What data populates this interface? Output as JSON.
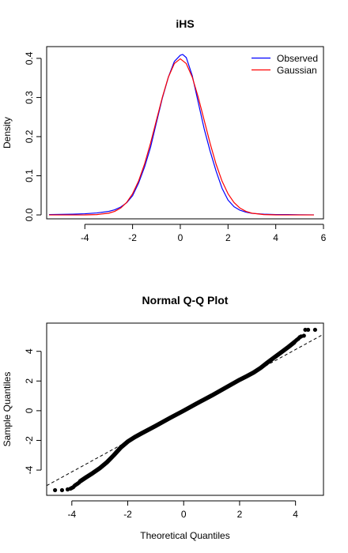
{
  "chart_data": [
    {
      "type": "line",
      "title": "iHS",
      "xlabel": "",
      "ylabel": "Density",
      "xlim": [
        -5.6,
        6.0
      ],
      "ylim": [
        -0.01,
        0.43
      ],
      "xticks": [
        -4,
        -2,
        0,
        2,
        4,
        6
      ],
      "yticks": [
        0.0,
        0.1,
        0.2,
        0.3,
        0.4
      ],
      "xtick_labels": [
        "-4",
        "-2",
        "0",
        "2",
        "4",
        "6"
      ],
      "ytick_labels": [
        "0.0",
        "0.1",
        "0.2",
        "0.3",
        "0.4"
      ],
      "legend_position": "top-right",
      "series": [
        {
          "name": "Observed",
          "color": "#0000ff",
          "x": [
            -5.5,
            -4.5,
            -4.0,
            -3.5,
            -3.0,
            -2.75,
            -2.5,
            -2.25,
            -2.0,
            -1.75,
            -1.5,
            -1.25,
            -1.0,
            -0.75,
            -0.5,
            -0.25,
            0.0,
            0.1,
            0.25,
            0.5,
            0.75,
            1.0,
            1.25,
            1.5,
            1.75,
            2.0,
            2.25,
            2.5,
            2.75,
            3.0,
            3.5,
            4.0,
            4.5,
            5.0,
            5.6
          ],
          "y": [
            0.001,
            0.002,
            0.003,
            0.005,
            0.009,
            0.013,
            0.02,
            0.031,
            0.049,
            0.081,
            0.122,
            0.172,
            0.236,
            0.299,
            0.352,
            0.392,
            0.408,
            0.41,
            0.402,
            0.356,
            0.288,
            0.22,
            0.163,
            0.112,
            0.068,
            0.038,
            0.021,
            0.012,
            0.007,
            0.004,
            0.002,
            0.001,
            0.001,
            0.0005,
            0.0002
          ]
        },
        {
          "name": "Gaussian",
          "color": "#ff0000",
          "x": [
            -5.5,
            -4.5,
            -4.0,
            -3.5,
            -3.0,
            -2.75,
            -2.5,
            -2.25,
            -2.0,
            -1.75,
            -1.5,
            -1.25,
            -1.0,
            -0.75,
            -0.5,
            -0.25,
            0.0,
            0.25,
            0.5,
            0.75,
            1.0,
            1.25,
            1.5,
            1.75,
            2.0,
            2.25,
            2.5,
            2.75,
            3.0,
            3.5,
            4.0,
            4.5,
            5.0,
            5.6
          ],
          "y": [
            0.0,
            2e-05,
            0.0001,
            0.0009,
            0.0044,
            0.0091,
            0.0175,
            0.0317,
            0.054,
            0.0863,
            0.1295,
            0.1826,
            0.242,
            0.3011,
            0.3521,
            0.3867,
            0.3989,
            0.3867,
            0.3521,
            0.3011,
            0.242,
            0.1826,
            0.1295,
            0.0863,
            0.054,
            0.0317,
            0.0175,
            0.0091,
            0.0044,
            0.0009,
            0.0001,
            2e-05,
            0.0,
            0.0
          ]
        }
      ]
    },
    {
      "type": "scatter",
      "title": "Normal Q-Q Plot",
      "xlabel": "Theoretical Quantiles",
      "ylabel": "Sample Quantiles",
      "xlim": [
        -4.9,
        5.0
      ],
      "ylim": [
        -5.7,
        5.9
      ],
      "xticks": [
        -4,
        -2,
        0,
        2,
        4
      ],
      "yticks": [
        -4,
        -2,
        0,
        2,
        4
      ],
      "xtick_labels": [
        "-4",
        "-2",
        "0",
        "2",
        "4"
      ],
      "ytick_labels": [
        "-4",
        "-2",
        "0",
        "2",
        "4"
      ],
      "reference_line": {
        "style": "dashed",
        "slope": 1.03,
        "intercept": 0.0
      },
      "qq_curve": {
        "x": [
          -3.7,
          -3.5,
          -3.25,
          -3.0,
          -2.75,
          -2.5,
          -2.25,
          -2.0,
          -1.75,
          -1.5,
          -1.0,
          -0.5,
          0.0,
          0.5,
          1.0,
          1.5,
          2.0,
          2.25,
          2.5,
          2.75,
          3.0,
          3.25,
          3.5,
          3.75,
          3.95
        ],
        "y": [
          -4.75,
          -4.5,
          -4.2,
          -3.87,
          -3.48,
          -3.0,
          -2.48,
          -2.08,
          -1.78,
          -1.52,
          -1.02,
          -0.5,
          0.0,
          0.52,
          1.02,
          1.55,
          2.08,
          2.32,
          2.57,
          2.88,
          3.25,
          3.6,
          3.95,
          4.3,
          4.6
        ]
      },
      "tail_points": {
        "x": [
          -4.6,
          -4.35,
          -4.15,
          -4.05,
          -4.0,
          -3.95,
          -3.9,
          -3.85,
          -3.8,
          -3.75,
          3.95,
          4.0,
          4.05,
          4.1,
          4.15,
          4.2,
          4.3,
          4.35,
          4.45,
          4.7
        ],
        "y": [
          -5.35,
          -5.35,
          -5.3,
          -5.25,
          -5.2,
          -5.15,
          -5.05,
          -4.98,
          -4.92,
          -4.85,
          4.62,
          4.7,
          4.78,
          4.85,
          4.95,
          5.0,
          5.05,
          5.45,
          5.45,
          5.45
        ]
      }
    }
  ]
}
